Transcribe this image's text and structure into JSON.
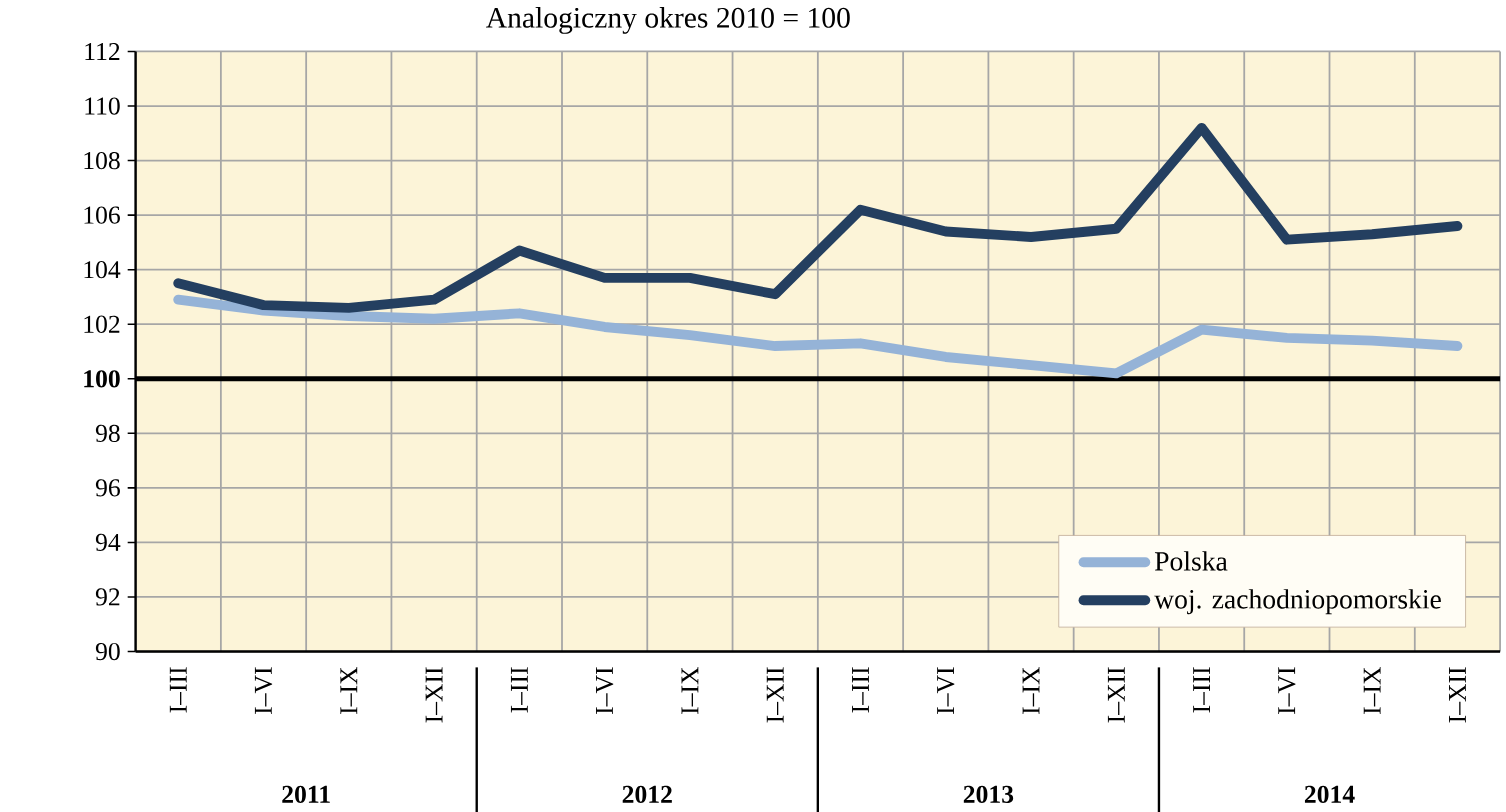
{
  "chart_data": {
    "type": "line",
    "title": "Analogiczny okres 2010 = 100",
    "categories": [
      "I–III",
      "I–VI",
      "I–IX",
      "I–XII",
      "I–III",
      "I–VI",
      "I–IX",
      "I–XII",
      "I–III",
      "I–VI",
      "I–IX",
      "I–XII",
      "I–III",
      "I–VI",
      "I–IX",
      "I–XII"
    ],
    "series": [
      {
        "name": "Polska",
        "color": "#95b3d7",
        "values": [
          102.9,
          102.5,
          102.3,
          102.2,
          102.4,
          101.9,
          101.6,
          101.2,
          101.3,
          100.8,
          100.5,
          100.2,
          101.8,
          101.5,
          101.4,
          101.2
        ]
      },
      {
        "name": "woj. zachodniopomorskie",
        "color": "#243f60",
        "values": [
          103.5,
          102.7,
          102.6,
          102.9,
          104.7,
          103.7,
          103.7,
          103.1,
          106.2,
          105.4,
          105.2,
          105.5,
          109.2,
          105.1,
          105.3,
          105.6
        ]
      }
    ],
    "ylim": [
      90,
      112
    ],
    "yticks": [
      90,
      92,
      94,
      96,
      98,
      100,
      102,
      104,
      106,
      108,
      110,
      112
    ],
    "ref_lines": [
      {
        "axis": "y",
        "value": 100,
        "color": "#000000"
      }
    ],
    "annotations": [
      "2011",
      "2012",
      "2013",
      "2014"
    ],
    "grid": true,
    "legend": "bottom right",
    "marker": "none",
    "line_style": "solid"
  }
}
